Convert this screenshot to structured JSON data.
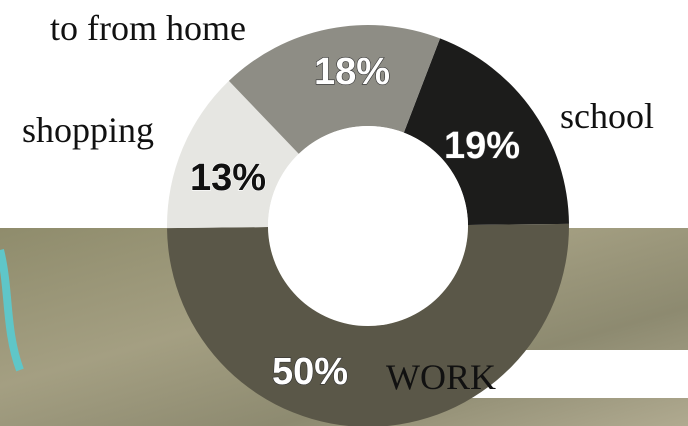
{
  "chart_data": {
    "type": "pie",
    "donut": true,
    "categories": [
      "school",
      "WORK",
      "shopping",
      "to from home"
    ],
    "values": [
      19,
      50,
      13,
      18
    ],
    "value_labels": [
      "19%",
      "50%",
      "13%",
      "18%"
    ],
    "colors": [
      "#1c1c1b",
      "#5a5748",
      "#e6e6e2",
      "#8e8d85"
    ]
  }
}
